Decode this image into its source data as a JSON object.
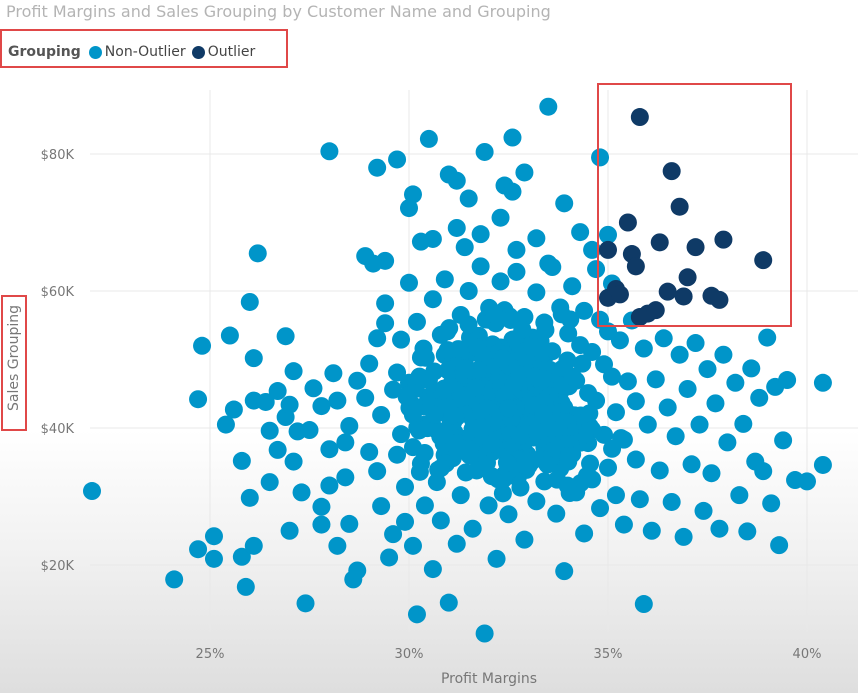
{
  "chart_data": {
    "type": "scatter",
    "title": "Profit Margins and Sales Grouping by Customer Name and Grouping",
    "xlabel": "Profit Margins",
    "ylabel": "Sales Grouping",
    "x_ticks": [
      "25%",
      "30%",
      "35%",
      "40%"
    ],
    "y_ticks": [
      "$20K",
      "$40K",
      "$60K",
      "$80K"
    ],
    "xlim": [
      22.0,
      41.2
    ],
    "ylim": [
      8000,
      90000
    ],
    "grid": true,
    "legend": {
      "title": "Grouping",
      "placement": "top-left",
      "items": [
        {
          "name": "Non-Outlier",
          "color": "#0095c9"
        },
        {
          "name": "Outlier",
          "color": "#0f3a66"
        }
      ]
    },
    "series": [
      {
        "name": "Non-Outlier",
        "color": "#0095c9",
        "points": [
          [
            22.0,
            30800
          ],
          [
            24.1,
            17900
          ],
          [
            24.7,
            22300
          ],
          [
            24.8,
            52000
          ],
          [
            24.7,
            44200
          ],
          [
            25.1,
            24200
          ],
          [
            25.1,
            20900
          ],
          [
            25.5,
            53500
          ],
          [
            25.4,
            40500
          ],
          [
            25.6,
            42700
          ],
          [
            25.8,
            35200
          ],
          [
            25.8,
            21200
          ],
          [
            25.9,
            16800
          ],
          [
            26.0,
            58400
          ],
          [
            26.0,
            29800
          ],
          [
            26.1,
            22800
          ],
          [
            26.1,
            44000
          ],
          [
            26.1,
            50200
          ],
          [
            26.2,
            65500
          ],
          [
            26.4,
            43800
          ],
          [
            26.5,
            32100
          ],
          [
            26.5,
            39600
          ],
          [
            26.7,
            36800
          ],
          [
            26.7,
            45400
          ],
          [
            26.9,
            41600
          ],
          [
            26.9,
            53400
          ],
          [
            27.0,
            43400
          ],
          [
            27.0,
            25000
          ],
          [
            27.1,
            35100
          ],
          [
            27.1,
            48300
          ],
          [
            27.2,
            39500
          ],
          [
            27.3,
            30600
          ],
          [
            27.4,
            14400
          ],
          [
            27.5,
            39700
          ],
          [
            27.6,
            45800
          ],
          [
            27.8,
            28500
          ],
          [
            27.8,
            25900
          ],
          [
            27.8,
            43200
          ],
          [
            28.0,
            31600
          ],
          [
            28.0,
            36900
          ],
          [
            28.1,
            48000
          ],
          [
            28.2,
            22800
          ],
          [
            28.2,
            44000
          ],
          [
            28.4,
            32800
          ],
          [
            28.4,
            37900
          ],
          [
            28.5,
            26000
          ],
          [
            28.5,
            40300
          ],
          [
            28.6,
            17900
          ],
          [
            28.7,
            19200
          ],
          [
            28.7,
            46900
          ],
          [
            28.9,
            44400
          ],
          [
            29.0,
            49400
          ],
          [
            29.0,
            36500
          ],
          [
            29.2,
            53100
          ],
          [
            29.2,
            33700
          ],
          [
            29.3,
            28600
          ],
          [
            29.3,
            41900
          ],
          [
            29.4,
            58200
          ],
          [
            29.4,
            64400
          ],
          [
            29.6,
            45600
          ],
          [
            29.5,
            21100
          ],
          [
            29.6,
            24500
          ],
          [
            29.7,
            36100
          ],
          [
            29.7,
            48100
          ],
          [
            29.8,
            52900
          ],
          [
            29.8,
            39100
          ],
          [
            29.9,
            26300
          ],
          [
            29.9,
            31400
          ],
          [
            30.0,
            61200
          ],
          [
            30.0,
            46600
          ],
          [
            30.1,
            43300
          ],
          [
            30.1,
            22800
          ],
          [
            30.1,
            37200
          ],
          [
            30.2,
            55500
          ],
          [
            30.2,
            12800
          ],
          [
            30.3,
            50300
          ],
          [
            30.3,
            34800
          ],
          [
            30.3,
            67200
          ],
          [
            30.4,
            28700
          ],
          [
            30.4,
            40500
          ],
          [
            30.5,
            47000
          ],
          [
            30.6,
            58800
          ],
          [
            30.6,
            19400
          ],
          [
            30.7,
            44500
          ],
          [
            30.7,
            32100
          ],
          [
            30.8,
            53600
          ],
          [
            30.8,
            26500
          ],
          [
            30.9,
            38600
          ],
          [
            30.9,
            61700
          ],
          [
            31.0,
            45100
          ],
          [
            31.0,
            14500
          ],
          [
            31.1,
            35600
          ],
          [
            31.1,
            50900
          ],
          [
            31.2,
            23100
          ],
          [
            31.2,
            41600
          ],
          [
            31.3,
            56500
          ],
          [
            31.3,
            30200
          ],
          [
            31.4,
            66400
          ],
          [
            31.4,
            47800
          ],
          [
            31.5,
            37200
          ],
          [
            31.5,
            60000
          ],
          [
            31.6,
            43400
          ],
          [
            31.6,
            25300
          ],
          [
            31.7,
            52400
          ],
          [
            31.7,
            33800
          ],
          [
            31.8,
            48200
          ],
          [
            31.8,
            63600
          ],
          [
            31.9,
            40500
          ],
          [
            31.9,
            10000
          ],
          [
            32.0,
            55800
          ],
          [
            32.0,
            28700
          ],
          [
            32.1,
            45100
          ],
          [
            32.1,
            36500
          ],
          [
            32.2,
            50200
          ],
          [
            32.2,
            20900
          ],
          [
            32.3,
            61400
          ],
          [
            32.3,
            42400
          ],
          [
            32.4,
            33200
          ],
          [
            32.4,
            57200
          ],
          [
            32.5,
            46700
          ],
          [
            32.5,
            27400
          ],
          [
            32.6,
            52900
          ],
          [
            32.6,
            38900
          ],
          [
            32.7,
            62800
          ],
          [
            32.7,
            44300
          ],
          [
            32.8,
            31300
          ],
          [
            32.8,
            49500
          ],
          [
            32.9,
            56200
          ],
          [
            32.9,
            23700
          ],
          [
            33.0,
            41400
          ],
          [
            33.0,
            35100
          ],
          [
            33.1,
            53200
          ],
          [
            33.1,
            46300
          ],
          [
            33.2,
            29300
          ],
          [
            33.2,
            59800
          ],
          [
            33.3,
            39900
          ],
          [
            33.3,
            48900
          ],
          [
            33.4,
            55400
          ],
          [
            33.4,
            32200
          ],
          [
            33.5,
            43800
          ],
          [
            33.5,
            64000
          ],
          [
            33.6,
            37000
          ],
          [
            33.6,
            51200
          ],
          [
            33.7,
            27500
          ],
          [
            33.7,
            45700
          ],
          [
            33.8,
            57600
          ],
          [
            33.8,
            34100
          ],
          [
            33.9,
            48300
          ],
          [
            33.9,
            19100
          ],
          [
            34.0,
            42100
          ],
          [
            34.0,
            53800
          ],
          [
            34.1,
            36200
          ],
          [
            34.1,
            60700
          ],
          [
            34.2,
            46900
          ],
          [
            34.2,
            30600
          ],
          [
            34.3,
            52100
          ],
          [
            34.3,
            41000
          ],
          [
            34.4,
            24600
          ],
          [
            34.4,
            57100
          ],
          [
            34.5,
            45100
          ],
          [
            34.5,
            37800
          ],
          [
            34.6,
            51100
          ],
          [
            34.6,
            32500
          ],
          [
            34.7,
            63200
          ],
          [
            34.7,
            44000
          ],
          [
            34.8,
            55800
          ],
          [
            34.8,
            28300
          ],
          [
            34.9,
            49300
          ],
          [
            34.9,
            39000
          ],
          [
            35.0,
            54100
          ],
          [
            35.0,
            34200
          ],
          [
            35.1,
            47500
          ],
          [
            35.1,
            61100
          ],
          [
            35.2,
            42300
          ],
          [
            35.2,
            30200
          ],
          [
            35.3,
            52800
          ],
          [
            35.4,
            38300
          ],
          [
            35.4,
            25900
          ],
          [
            35.5,
            46800
          ],
          [
            35.6,
            55700
          ],
          [
            35.7,
            35400
          ],
          [
            35.7,
            43900
          ],
          [
            35.8,
            29600
          ],
          [
            35.9,
            51600
          ],
          [
            35.9,
            14300
          ],
          [
            36.0,
            40500
          ],
          [
            36.1,
            25000
          ],
          [
            36.2,
            47100
          ],
          [
            36.3,
            33800
          ],
          [
            36.4,
            53100
          ],
          [
            36.5,
            43000
          ],
          [
            36.6,
            29200
          ],
          [
            36.7,
            38800
          ],
          [
            36.8,
            50700
          ],
          [
            36.9,
            24100
          ],
          [
            37.0,
            45700
          ],
          [
            37.1,
            34700
          ],
          [
            37.2,
            52400
          ],
          [
            37.3,
            40500
          ],
          [
            37.4,
            27900
          ],
          [
            37.5,
            48600
          ],
          [
            37.6,
            33400
          ],
          [
            37.7,
            43600
          ],
          [
            37.8,
            25300
          ],
          [
            37.9,
            50700
          ],
          [
            38.0,
            37900
          ],
          [
            38.2,
            46600
          ],
          [
            38.3,
            30200
          ],
          [
            38.4,
            40600
          ],
          [
            38.5,
            24900
          ],
          [
            38.6,
            48700
          ],
          [
            38.7,
            35100
          ],
          [
            38.8,
            44400
          ],
          [
            38.9,
            33700
          ],
          [
            39.0,
            53200
          ],
          [
            39.1,
            29000
          ],
          [
            39.2,
            46000
          ],
          [
            39.3,
            22900
          ],
          [
            39.4,
            38200
          ],
          [
            39.5,
            47000
          ],
          [
            39.7,
            32400
          ],
          [
            40.0,
            32200
          ],
          [
            40.4,
            34600
          ],
          [
            40.4,
            46600
          ],
          [
            29.4,
            55300
          ],
          [
            29.7,
            79200
          ],
          [
            28.0,
            80400
          ],
          [
            29.2,
            78000
          ],
          [
            30.1,
            74100
          ],
          [
            30.5,
            82200
          ],
          [
            30.0,
            72100
          ],
          [
            31.0,
            77000
          ],
          [
            31.2,
            76100
          ],
          [
            31.5,
            73500
          ],
          [
            31.9,
            80300
          ],
          [
            32.4,
            75400
          ],
          [
            32.6,
            82400
          ],
          [
            32.6,
            74500
          ],
          [
            32.9,
            77300
          ],
          [
            33.5,
            86900
          ],
          [
            33.9,
            72800
          ],
          [
            34.3,
            68600
          ],
          [
            34.8,
            79500
          ],
          [
            29.1,
            64000
          ],
          [
            28.9,
            65100
          ],
          [
            30.6,
            67600
          ],
          [
            31.2,
            69200
          ],
          [
            31.8,
            68300
          ],
          [
            32.3,
            70700
          ],
          [
            32.7,
            66000
          ],
          [
            33.2,
            67700
          ],
          [
            33.6,
            63500
          ],
          [
            34.6,
            66000
          ],
          [
            35.0,
            68200
          ]
        ]
      },
      {
        "name": "Outlier",
        "color": "#0f3a66",
        "points": [
          [
            35.0,
            66000
          ],
          [
            35.0,
            59000
          ],
          [
            35.2,
            60300
          ],
          [
            35.3,
            59500
          ],
          [
            35.5,
            70000
          ],
          [
            35.6,
            65400
          ],
          [
            35.7,
            63600
          ],
          [
            35.8,
            56200
          ],
          [
            35.8,
            85400
          ],
          [
            36.0,
            56700
          ],
          [
            36.3,
            67100
          ],
          [
            36.5,
            59900
          ],
          [
            36.6,
            77500
          ],
          [
            36.8,
            72300
          ],
          [
            36.9,
            59200
          ],
          [
            37.2,
            66400
          ],
          [
            37.6,
            59300
          ],
          [
            37.8,
            58700
          ],
          [
            37.9,
            67500
          ],
          [
            38.9,
            64500
          ],
          [
            37.0,
            62000
          ],
          [
            36.2,
            57200
          ]
        ]
      }
    ]
  },
  "series_colors": {
    "grid": "#e8e8e8",
    "text": "#777777",
    "highlight": "#e04848"
  }
}
